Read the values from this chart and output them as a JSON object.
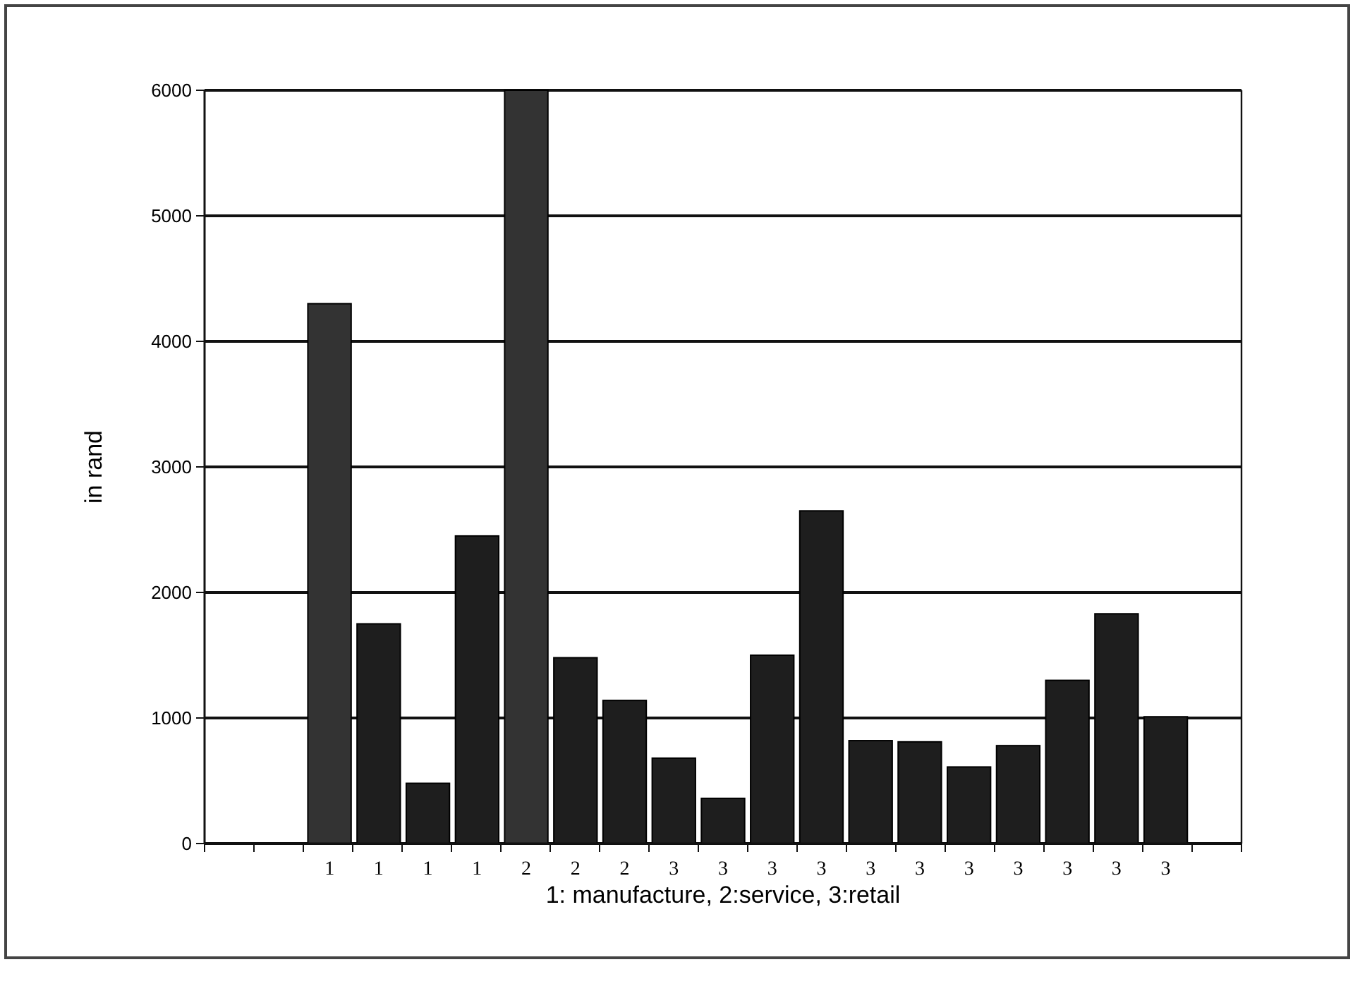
{
  "chart_data": {
    "type": "bar",
    "xlabel": "1: manufacture, 2:service, 3:retail",
    "ylabel": "in rand",
    "categories": [
      null,
      null,
      "1",
      "1",
      "1",
      "1",
      "2",
      "2",
      "2",
      "3",
      "3",
      "3",
      "3",
      "3",
      "3",
      "3",
      "3",
      "3",
      "3",
      "3",
      null
    ],
    "values": [
      null,
      null,
      4300,
      1750,
      480,
      2450,
      6000,
      1480,
      1140,
      680,
      360,
      1500,
      2650,
      820,
      810,
      610,
      780,
      1300,
      1830,
      1010,
      null
    ],
    "colors": [
      null,
      null,
      "#333333",
      "#1e1e1e",
      "#1e1e1e",
      "#1e1e1e",
      "#333333",
      "#1e1e1e",
      "#1e1e1e",
      "#1e1e1e",
      "#1e1e1e",
      "#1e1e1e",
      "#1e1e1e",
      "#1e1e1e",
      "#1e1e1e",
      "#1e1e1e",
      "#1e1e1e",
      "#1e1e1e",
      "#1e1e1e",
      "#1e1e1e",
      null
    ],
    "ylim": [
      0,
      6000
    ],
    "yticks": [
      0,
      1000,
      2000,
      3000,
      4000,
      5000,
      6000
    ],
    "grid": "y"
  }
}
